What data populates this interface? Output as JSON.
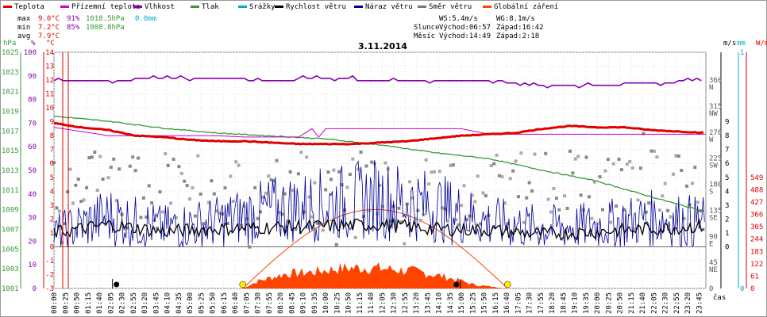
{
  "legend": [
    {
      "label": "Teplota",
      "color": "#e00000"
    },
    {
      "label": "Přízemní teplota",
      "color": "#cc00cc"
    },
    {
      "label": "Vlhkost",
      "color": "#8800aa"
    },
    {
      "label": "Tlak",
      "color": "#339933"
    },
    {
      "label": "Srážky",
      "color": "#00aacc"
    },
    {
      "label": "Rychlost větru",
      "color": "#000000"
    },
    {
      "label": "Náraz větru",
      "color": "#000099"
    },
    {
      "label": "Směr větru",
      "color": "#777777"
    },
    {
      "label": "Globální záření",
      "color": "#ff4400"
    }
  ],
  "stats": {
    "max": {
      "label": "max",
      "temp": "9.0°C",
      "hum": "91%",
      "press": "1018.5hPa",
      "rain": "0.0mm"
    },
    "min": {
      "label": "min",
      "temp": "7.2°C",
      "hum": "85%",
      "press": "1008.8hPa"
    },
    "avg": {
      "label": "avg",
      "temp": "7.9°C"
    }
  },
  "wind": {
    "ws": "WS:5.4m/s",
    "wg": "WG:8.1m/s"
  },
  "sun": {
    "label": "Slunce",
    "rise": "Východ:06:57",
    "set": "Západ:16:42"
  },
  "moon": {
    "label": "Měsíc",
    "rise": "Východ:14:49",
    "set": "Západ:2:18"
  },
  "colors": {
    "temp": "#e00000",
    "ground": "#cc00cc",
    "hum": "#8800aa",
    "press": "#339933",
    "rain": "#00aacc",
    "wind": "#000000",
    "gust": "#000099",
    "dir": "#777777",
    "rad": "#ff4400"
  },
  "axes": {
    "hpa_unit": "hPa",
    "pct_unit": "%",
    "c_unit": "°C",
    "ms_unit": "m/s",
    "mm_unit": "mm",
    "wm2_unit": "W/m²",
    "hpa_ticks": [
      "1025",
      "1023",
      "1021",
      "1019",
      "1017",
      "1015",
      "1013",
      "1011",
      "1009",
      "1007",
      "1005",
      "1003",
      "1001"
    ],
    "pct_ticks": [
      "100",
      "90",
      "80",
      "70",
      "60",
      "50",
      "40",
      "30",
      "20",
      "10",
      "0"
    ],
    "c_ticks": [
      "14",
      "13",
      "12",
      "11",
      "10",
      "9",
      "8",
      "7",
      "6",
      "5",
      "4",
      "3",
      "2",
      "1",
      "0",
      "-1",
      "-2",
      "-3"
    ],
    "dir_ticks": [
      {
        "deg": "360",
        "lbl": "N"
      },
      {
        "deg": "315",
        "lbl": "NW"
      },
      {
        "deg": "270",
        "lbl": "W"
      },
      {
        "deg": "225",
        "lbl": "SW"
      },
      {
        "deg": "180",
        "lbl": "S"
      },
      {
        "deg": "135",
        "lbl": "SE"
      },
      {
        "deg": "90",
        "lbl": "E"
      },
      {
        "deg": "45",
        "lbl": "NE"
      },
      {
        "deg": "0",
        "lbl": ""
      }
    ],
    "ms_ticks": [
      "9",
      "8",
      "7",
      "6",
      "5",
      "4",
      "3",
      "2",
      "1",
      "0"
    ],
    "mm_ticks": [
      "1",
      "0"
    ],
    "rad_ticks": [
      "549",
      "488",
      "427",
      "366",
      "305",
      "244",
      "183",
      "122",
      "61",
      "0"
    ],
    "time_label": "čas",
    "time_ticks": [
      "00:00",
      "00:25",
      "00:50",
      "01:15",
      "01:40",
      "02:05",
      "02:30",
      "02:55",
      "03:20",
      "03:45",
      "04:10",
      "04:35",
      "05:00",
      "05:25",
      "05:50",
      "06:15",
      "06:40",
      "07:05",
      "07:30",
      "07:55",
      "08:20",
      "08:45",
      "09:10",
      "09:35",
      "10:00",
      "10:25",
      "10:50",
      "11:15",
      "11:40",
      "12:05",
      "12:30",
      "12:55",
      "13:20",
      "13:45",
      "14:10",
      "14:35",
      "15:00",
      "15:25",
      "15:50",
      "16:15",
      "16:40",
      "17:05",
      "17:30",
      "17:55",
      "18:20",
      "18:45",
      "19:10",
      "19:35",
      "20:00",
      "20:25",
      "20:50",
      "21:15",
      "21:40",
      "22:05",
      "22:30",
      "22:55",
      "23:20",
      "23:45"
    ]
  },
  "chart_data": {
    "type": "line",
    "title": "3.11.2014",
    "xlabel": "čas",
    "xlim": [
      "00:00",
      "24:00"
    ],
    "series": [
      {
        "name": "Teplota",
        "unit": "°C",
        "x": [
          "00:00",
          "01:00",
          "02:00",
          "03:00",
          "04:00",
          "05:00",
          "06:00",
          "07:00",
          "08:00",
          "09:00",
          "10:00",
          "11:00",
          "12:00",
          "13:00",
          "14:00",
          "15:00",
          "16:00",
          "17:00",
          "18:00",
          "19:00",
          "20:00",
          "21:00",
          "22:00",
          "23:00",
          "23:59"
        ],
        "values": [
          8.9,
          8.6,
          8.4,
          8.0,
          7.9,
          7.7,
          7.6,
          7.6,
          7.5,
          7.4,
          7.4,
          7.4,
          7.5,
          7.6,
          7.8,
          8.0,
          8.1,
          8.2,
          8.5,
          8.7,
          8.6,
          8.6,
          8.4,
          8.3,
          8.2
        ]
      },
      {
        "name": "Přízemní teplota",
        "unit": "°C",
        "x": [
          "00:00",
          "01:00",
          "02:00",
          "03:00",
          "04:00",
          "05:00",
          "06:00",
          "07:00",
          "08:00",
          "09:00",
          "09:30",
          "09:45",
          "10:00",
          "11:00",
          "12:00",
          "13:00",
          "14:00",
          "15:00",
          "16:00",
          "17:00",
          "18:00",
          "19:00",
          "20:00",
          "21:00",
          "22:00",
          "23:00",
          "23:59"
        ],
        "values": [
          8.6,
          8.3,
          8.0,
          8.0,
          8.0,
          8.0,
          8.0,
          7.9,
          7.9,
          7.9,
          8.5,
          7.9,
          8.5,
          8.5,
          8.5,
          8.5,
          8.5,
          8.5,
          8.1,
          8.1,
          8.1,
          8.1,
          8.1,
          8.1,
          8.1,
          8.1,
          8.1
        ]
      },
      {
        "name": "Vlhkost",
        "unit": "%",
        "x": [
          "00:00",
          "02:00",
          "04:00",
          "06:00",
          "08:00",
          "10:00",
          "12:00",
          "14:00",
          "16:00",
          "18:00",
          "20:00",
          "22:00",
          "23:59"
        ],
        "values": [
          88,
          88,
          89,
          89,
          88,
          89,
          88,
          88,
          88,
          86,
          86,
          87,
          88
        ]
      },
      {
        "name": "Tlak",
        "unit": "hPa",
        "x": [
          "00:00",
          "02:00",
          "04:00",
          "06:00",
          "08:00",
          "10:00",
          "12:00",
          "14:00",
          "16:00",
          "18:00",
          "20:00",
          "22:00",
          "23:59"
        ],
        "values": [
          1018.5,
          1018.0,
          1017.3,
          1016.8,
          1016.5,
          1016.2,
          1015.6,
          1014.8,
          1014.2,
          1013.0,
          1011.9,
          1010.3,
          1008.8
        ]
      },
      {
        "name": "Rychlost větru",
        "unit": "m/s",
        "x": [
          "00:00",
          "02:00",
          "04:00",
          "06:00",
          "08:00",
          "10:00",
          "12:00",
          "14:00",
          "16:00",
          "18:00",
          "20:00",
          "22:00",
          "23:59"
        ],
        "values": [
          1.0,
          1.6,
          1.1,
          1.3,
          1.4,
          1.5,
          1.6,
          1.3,
          1.2,
          0.9,
          1.1,
          1.3,
          1.5
        ]
      },
      {
        "name": "Náraz větru",
        "unit": "m/s",
        "x": [
          "00:00",
          "02:00",
          "04:00",
          "06:00",
          "08:00",
          "10:00",
          "12:00",
          "14:00",
          "16:00",
          "18:00",
          "20:00",
          "22:00",
          "23:59"
        ],
        "values": [
          2.5,
          4.0,
          3.0,
          3.5,
          4.5,
          5.0,
          5.5,
          4.8,
          3.5,
          3.0,
          3.2,
          3.8,
          3.5
        ]
      },
      {
        "name": "Globální záření",
        "unit": "W/m²",
        "x": [
          "06:57",
          "07:30",
          "08:30",
          "09:30",
          "10:30",
          "11:30",
          "12:30",
          "13:30",
          "14:30",
          "15:30",
          "16:42"
        ],
        "values": [
          0,
          40,
          80,
          90,
          110,
          115,
          105,
          90,
          60,
          20,
          0
        ]
      }
    ],
    "theoretical_radiation": {
      "x": [
        "06:57",
        "09:00",
        "11:50",
        "14:30",
        "16:42"
      ],
      "values": [
        0,
        270,
        390,
        270,
        0
      ]
    },
    "wind_direction_range_deg": [
      0,
      360
    ],
    "sunrise": "06:57",
    "sunset": "16:42",
    "moonrise": "14:49",
    "moonset": "2:18"
  }
}
